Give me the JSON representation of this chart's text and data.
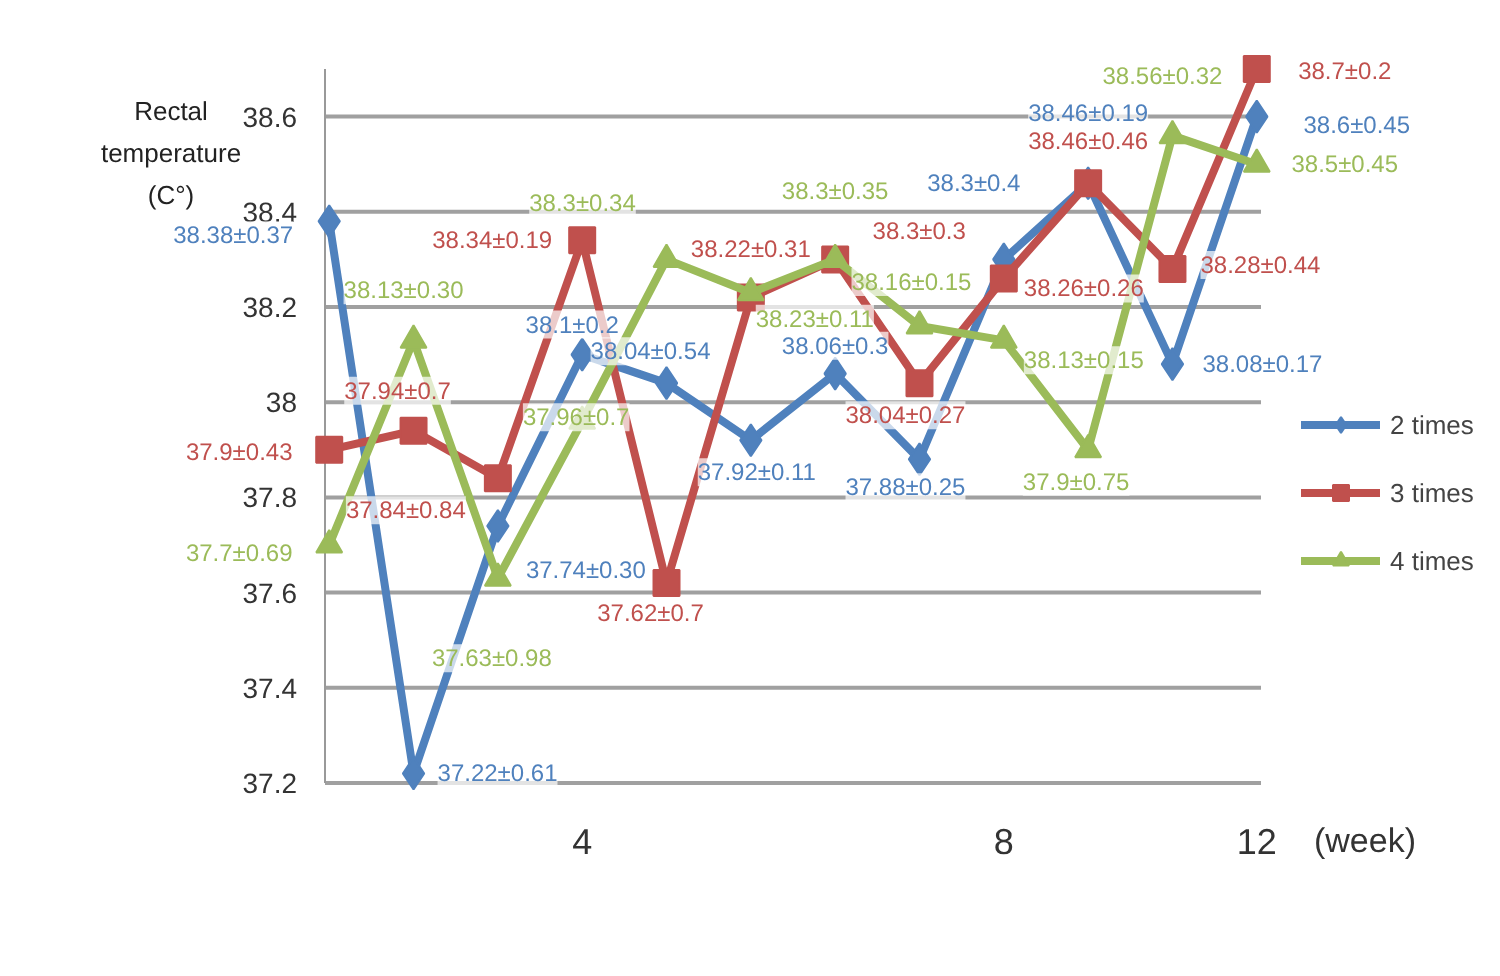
{
  "chart_data": {
    "type": "line",
    "ylabel": "Rectal\ntemperature\n(C°)",
    "xlabel": "(week)",
    "categories": [
      null,
      null,
      null,
      "4",
      null,
      null,
      null,
      null,
      "8",
      null,
      null,
      "12"
    ],
    "ylim": [
      37.2,
      38.7
    ],
    "yticks": [
      37.2,
      37.4,
      37.6,
      37.8,
      {
        "value": 38,
        "label": "38"
      },
      38.2,
      38.4,
      38.6
    ],
    "grid": "y",
    "legend": "right",
    "series": [
      {
        "name": "2 times",
        "color": "#4f81bd",
        "marker": "diamond",
        "values": [
          38.38,
          37.22,
          37.74,
          38.1,
          38.04,
          37.92,
          38.06,
          37.88,
          38.3,
          38.46,
          38.08,
          38.6
        ],
        "value_labels": [
          "38.38±0.37",
          "37.22±0.61",
          "37.74±0.30",
          "38.1±0.2",
          "38.04±0.54",
          "37.92±0.11",
          "38.06±0.3",
          "37.88±0.25",
          "38.3±0.4",
          "38.46±0.19",
          "38.08±0.17",
          "38.6±0.45"
        ]
      },
      {
        "name": "3 times",
        "color": "#c0504d",
        "marker": "square",
        "values": [
          37.9,
          37.94,
          37.84,
          38.34,
          37.62,
          38.22,
          38.3,
          38.04,
          38.26,
          38.46,
          38.28,
          38.7
        ],
        "value_labels": [
          "37.9±0.43",
          "37.94±0.7",
          "37.84±0.84",
          "38.34±0.19",
          "37.62±0.7",
          "38.22±0.31",
          "38.3±0.3",
          "38.04±0.27",
          "38.26±0.26",
          "38.46±0.46",
          "38.28±0.44",
          "38.7±0.2"
        ]
      },
      {
        "name": "4 times",
        "color": "#9bbb59",
        "marker": "triangle",
        "values": [
          37.7,
          38.13,
          37.63,
          37.96,
          38.3,
          38.23,
          38.3,
          38.16,
          38.13,
          37.9,
          38.56,
          38.5
        ],
        "value_labels": [
          "37.7±0.69",
          "38.13±0.30",
          "37.63±0.98",
          "37.96±0.7",
          "38.3±0.34",
          "38.23±0.11",
          "38.3±0.35",
          "38.16±0.15",
          "38.13±0.15",
          "37.9±0.75",
          "38.56±0.32",
          "38.5±0.45"
        ]
      }
    ]
  }
}
